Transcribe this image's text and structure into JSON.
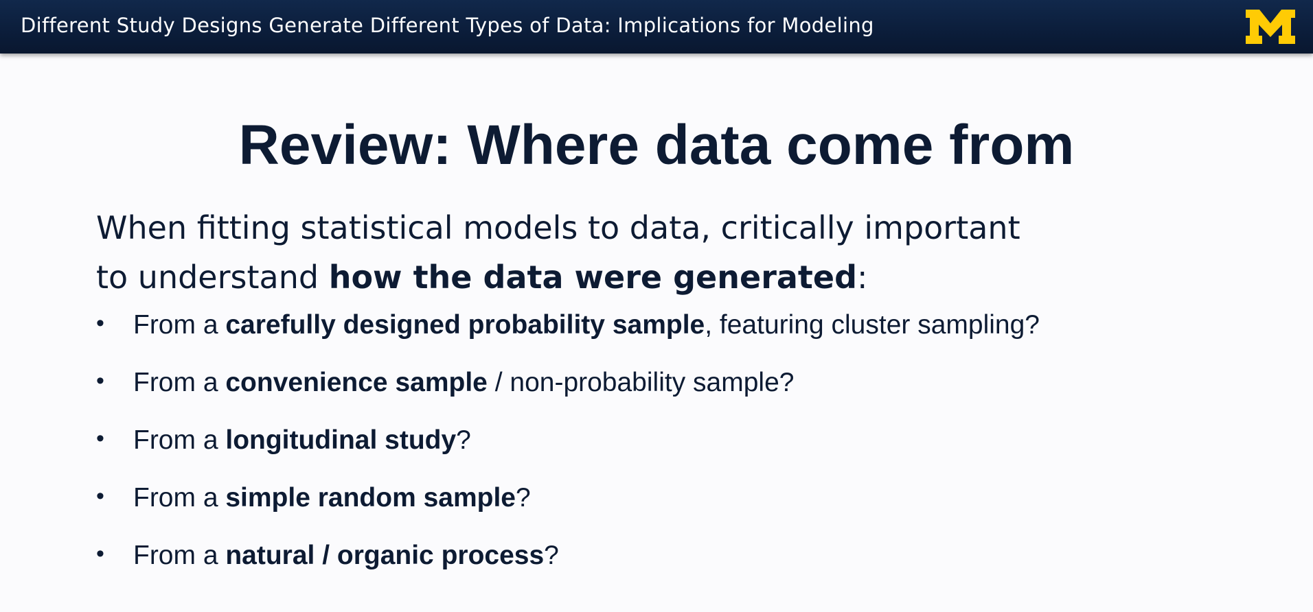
{
  "header": {
    "title": "Different Study Designs Generate Different Types of Data: Implications for Modeling",
    "logo_letter": "M",
    "logo_color": "#ffcb05",
    "bar_color": "#0b1d3a"
  },
  "slide": {
    "title": "Review: Where data come from",
    "intro": {
      "line1": "When fitting statistical models to data, critically important",
      "line2_prefix": "to understand ",
      "line2_bold": "how the data were generated",
      "line2_suffix": ":"
    },
    "bullets": [
      {
        "prefix": "From a ",
        "bold": "carefully designed probability sample",
        "suffix": ", featuring cluster sampling?"
      },
      {
        "prefix": "From a ",
        "bold": "convenience sample",
        "suffix": " / non-probability sample?"
      },
      {
        "prefix": "From a ",
        "bold": "longitudinal study",
        "suffix": "?"
      },
      {
        "prefix": "From a ",
        "bold": "simple random sample",
        "suffix": "?"
      },
      {
        "prefix": "From a ",
        "bold": "natural / organic process",
        "suffix": "?"
      }
    ],
    "bullet_symbol": "•"
  }
}
